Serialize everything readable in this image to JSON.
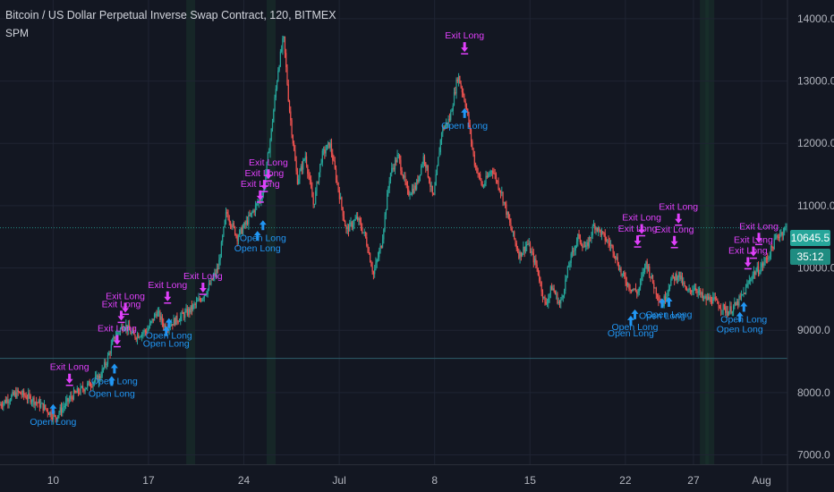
{
  "header": {
    "title": "Bitcoin / US Dollar Perpetual Inverse Swap Contract, 120, BITMEX",
    "study": "SPM"
  },
  "colors": {
    "background": "#131722",
    "grid": "#1f2433",
    "up": "#26a69a",
    "down": "#ef5350",
    "entry": "#2196f3",
    "exit": "#e040fb",
    "axis_text": "#b2b5be"
  },
  "badges": {
    "last_price": "10645.5",
    "countdown": "35:12"
  },
  "chart_data": {
    "type": "candlestick",
    "symbol": "XBTUSD",
    "interval": "120",
    "exchange": "BITMEX",
    "ylim": [
      6850,
      14300
    ],
    "y_ticks": [
      {
        "value": 7000,
        "label": "7000.0"
      },
      {
        "value": 8000,
        "label": "8000.0"
      },
      {
        "value": 9000,
        "label": "9000.0"
      },
      {
        "value": 10000,
        "label": "10000.0"
      },
      {
        "value": 11000,
        "label": "11000.0"
      },
      {
        "value": 12000,
        "label": "12000.0"
      },
      {
        "value": 13000,
        "label": "13000.0"
      },
      {
        "value": 14000,
        "label": "14000.0"
      }
    ],
    "x_ticks": [
      {
        "day": 10,
        "label": "10"
      },
      {
        "day": 17,
        "label": "17"
      },
      {
        "day": 24,
        "label": "24"
      },
      {
        "day": 31,
        "label": "Jul"
      },
      {
        "day": 38,
        "label": "8"
      },
      {
        "day": 45,
        "label": "15"
      },
      {
        "day": 52,
        "label": "22"
      },
      {
        "day": 57,
        "label": "27"
      },
      {
        "day": 62,
        "label": "Aug"
      }
    ],
    "x_range_days": [
      6.1,
      63.9
    ],
    "price_path": [
      [
        6.1,
        7800
      ],
      [
        7.5,
        8000
      ],
      [
        8.5,
        7900
      ],
      [
        9.5,
        7750
      ],
      [
        10.2,
        7600
      ],
      [
        11.5,
        7950
      ],
      [
        12.5,
        8100
      ],
      [
        13.5,
        8250
      ],
      [
        14,
        8500
      ],
      [
        14.6,
        8900
      ],
      [
        15.3,
        9100
      ],
      [
        16,
        8900
      ],
      [
        17,
        9000
      ],
      [
        17.7,
        9300
      ],
      [
        18.3,
        9050
      ],
      [
        19,
        9150
      ],
      [
        20,
        9300
      ],
      [
        20.7,
        9450
      ],
      [
        21.4,
        9650
      ],
      [
        22.2,
        10000
      ],
      [
        22.8,
        10900
      ],
      [
        23.6,
        10500
      ],
      [
        24.2,
        10700
      ],
      [
        25,
        11000
      ],
      [
        25.5,
        11200
      ],
      [
        26.1,
        12200
      ],
      [
        26.6,
        13200
      ],
      [
        27,
        13700
      ],
      [
        27.4,
        12600
      ],
      [
        28,
        11400
      ],
      [
        28.6,
        11800
      ],
      [
        29.2,
        11000
      ],
      [
        29.8,
        11800
      ],
      [
        30.4,
        12000
      ],
      [
        30.9,
        11400
      ],
      [
        31.6,
        10600
      ],
      [
        32.4,
        10800
      ],
      [
        33,
        10500
      ],
      [
        33.6,
        9900
      ],
      [
        34.2,
        10400
      ],
      [
        34.8,
        11500
      ],
      [
        35.4,
        11800
      ],
      [
        36.1,
        11200
      ],
      [
        36.7,
        11300
      ],
      [
        37.3,
        11800
      ],
      [
        38,
        11100
      ],
      [
        38.6,
        12200
      ],
      [
        39.2,
        12400
      ],
      [
        39.8,
        13100
      ],
      [
        40.4,
        12600
      ],
      [
        41,
        11700
      ],
      [
        41.6,
        11300
      ],
      [
        42.3,
        11600
      ],
      [
        43,
        11200
      ],
      [
        43.6,
        10700
      ],
      [
        44.3,
        10200
      ],
      [
        44.9,
        10400
      ],
      [
        45.6,
        10000
      ],
      [
        46.2,
        9400
      ],
      [
        46.7,
        9700
      ],
      [
        47.3,
        9400
      ],
      [
        48,
        10100
      ],
      [
        48.6,
        10500
      ],
      [
        49.2,
        10300
      ],
      [
        49.8,
        10700
      ],
      [
        50.5,
        10500
      ],
      [
        51.2,
        10300
      ],
      [
        51.8,
        9900
      ],
      [
        52.4,
        9700
      ],
      [
        53,
        9600
      ],
      [
        53.6,
        10100
      ],
      [
        54.2,
        9700
      ],
      [
        54.8,
        9400
      ],
      [
        55.4,
        9800
      ],
      [
        56,
        9900
      ],
      [
        56.6,
        9600
      ],
      [
        57.2,
        9700
      ],
      [
        57.8,
        9500
      ],
      [
        58.4,
        9500
      ],
      [
        59,
        9400
      ],
      [
        59.6,
        9300
      ],
      [
        60.2,
        9400
      ],
      [
        60.8,
        9600
      ],
      [
        61.4,
        9900
      ],
      [
        62,
        10000
      ],
      [
        62.6,
        10200
      ],
      [
        63.2,
        10500
      ],
      [
        63.9,
        10645.5
      ]
    ],
    "signals": [
      {
        "kind": "open",
        "label": "Open Long",
        "day": 10.0,
        "price": 7700
      },
      {
        "kind": "exit",
        "label": "Exit Long",
        "day": 11.2,
        "price": 8160
      },
      {
        "kind": "open",
        "label": "Open Long",
        "day": 14.3,
        "price": 8150
      },
      {
        "kind": "open",
        "label": "Open Long",
        "day": 14.5,
        "price": 8350
      },
      {
        "kind": "exit",
        "label": "Exit Long",
        "day": 14.7,
        "price": 8780
      },
      {
        "kind": "exit",
        "label": "Exit Long",
        "day": 15.0,
        "price": 9170
      },
      {
        "kind": "exit",
        "label": "Exit Long",
        "day": 15.3,
        "price": 9300
      },
      {
        "kind": "open",
        "label": "Open Long",
        "day": 18.3,
        "price": 8950
      },
      {
        "kind": "open",
        "label": "Open Long",
        "day": 18.5,
        "price": 9080
      },
      {
        "kind": "exit",
        "label": "Exit Long",
        "day": 18.4,
        "price": 9480
      },
      {
        "kind": "exit",
        "label": "Exit Long",
        "day": 21.0,
        "price": 9620
      },
      {
        "kind": "open",
        "label": "Open Long",
        "day": 25.0,
        "price": 10480
      },
      {
        "kind": "open",
        "label": "Open Long",
        "day": 25.4,
        "price": 10650
      },
      {
        "kind": "exit",
        "label": "Exit Long",
        "day": 25.2,
        "price": 11100
      },
      {
        "kind": "exit",
        "label": "Exit Long",
        "day": 25.5,
        "price": 11270
      },
      {
        "kind": "exit",
        "label": "Exit Long",
        "day": 25.8,
        "price": 11440
      },
      {
        "kind": "open",
        "label": "Open Long",
        "day": 40.2,
        "price": 12450
      },
      {
        "kind": "exit",
        "label": "Exit Long",
        "day": 40.2,
        "price": 13480
      },
      {
        "kind": "open",
        "label": "Open Long",
        "day": 52.4,
        "price": 9120
      },
      {
        "kind": "open",
        "label": "Open Long",
        "day": 52.7,
        "price": 9220
      },
      {
        "kind": "exit",
        "label": "Exit Long",
        "day": 52.9,
        "price": 10380
      },
      {
        "kind": "exit",
        "label": "Exit Long",
        "day": 53.2,
        "price": 10560
      },
      {
        "kind": "open",
        "label": "Open Long",
        "day": 54.7,
        "price": 9400
      },
      {
        "kind": "open",
        "label": "Open Long",
        "day": 55.2,
        "price": 9420
      },
      {
        "kind": "exit",
        "label": "Exit Long",
        "day": 55.6,
        "price": 10370
      },
      {
        "kind": "exit",
        "label": "Exit Long",
        "day": 55.9,
        "price": 10730
      },
      {
        "kind": "open",
        "label": "Open Long",
        "day": 60.4,
        "price": 9180
      },
      {
        "kind": "open",
        "label": "Open Long",
        "day": 60.7,
        "price": 9340
      },
      {
        "kind": "exit",
        "label": "Exit Long",
        "day": 61.0,
        "price": 10030
      },
      {
        "kind": "exit",
        "label": "Exit Long",
        "day": 61.4,
        "price": 10200
      },
      {
        "kind": "exit",
        "label": "Exit Long",
        "day": 61.8,
        "price": 10420
      }
    ],
    "highlight_days": [
      20.1,
      26.0,
      57.8,
      58.2
    ],
    "horizontal_line": 8550,
    "last_price": 10645.5
  }
}
